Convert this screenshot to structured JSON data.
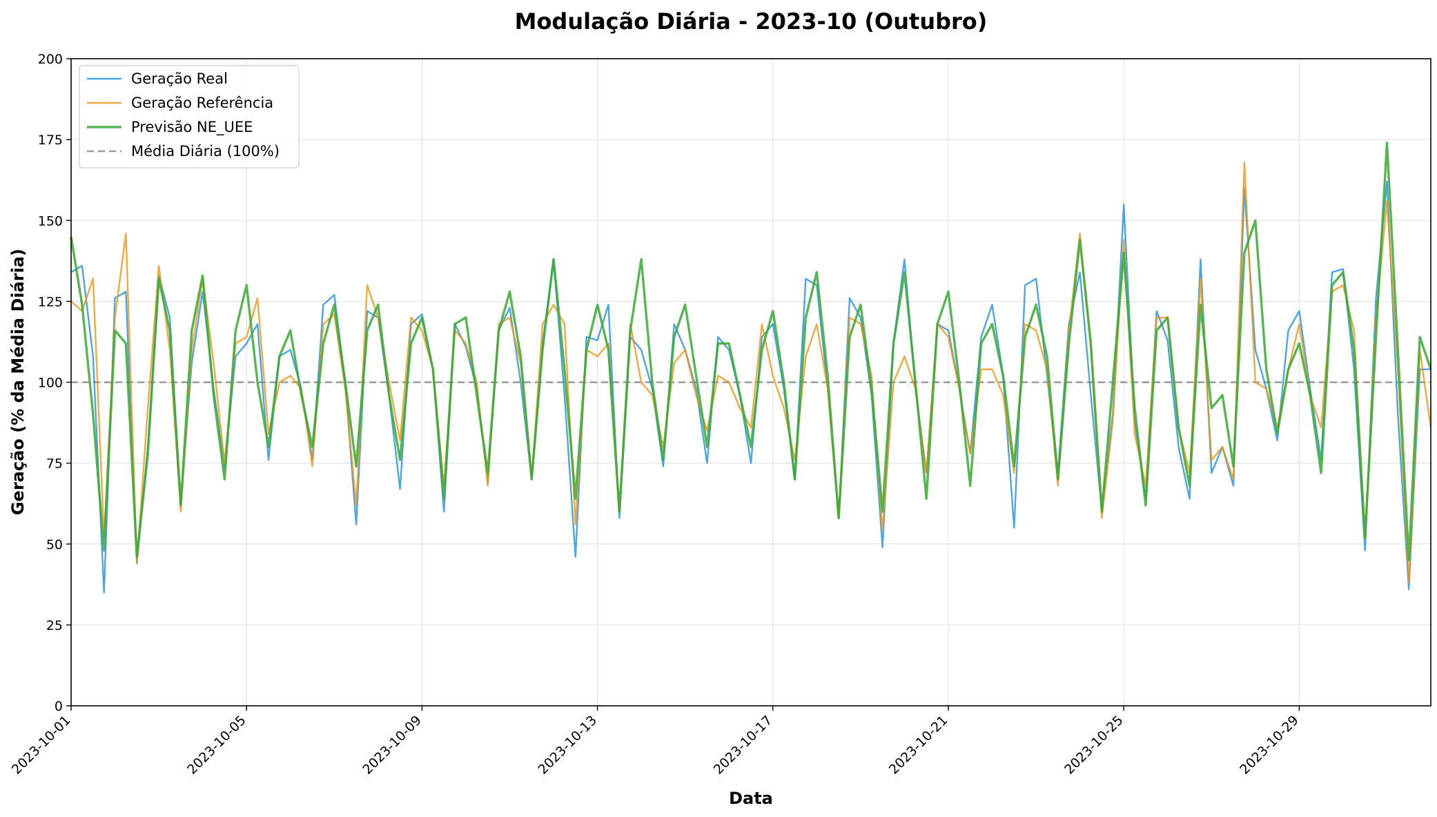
{
  "chart_data": {
    "type": "line",
    "title": "Modulação Diária - 2023-10 (Outubro)",
    "xlabel": "Data",
    "ylabel": "Geração (% da Média Diária)",
    "ylim": [
      0,
      200
    ],
    "yticks": [
      0,
      25,
      50,
      75,
      100,
      125,
      150,
      175,
      200
    ],
    "xlim": [
      "2023-10-01",
      "2023-11-01"
    ],
    "xticks": [
      "2023-10-01",
      "2023-10-05",
      "2023-10-09",
      "2023-10-13",
      "2023-10-17",
      "2023-10-21",
      "2023-10-25",
      "2023-10-29"
    ],
    "grid": true,
    "legend_position": "top-left",
    "reference_line": {
      "name": "Média Diária (100%)",
      "y": 100,
      "color": "#999999",
      "style": "dashed"
    },
    "x": [
      "2023-10-01 00:00",
      "2023-10-01 06:00",
      "2023-10-01 12:00",
      "2023-10-01 18:00",
      "2023-10-02 00:00",
      "2023-10-02 06:00",
      "2023-10-02 12:00",
      "2023-10-02 18:00",
      "2023-10-03 00:00",
      "2023-10-03 06:00",
      "2023-10-03 12:00",
      "2023-10-03 18:00",
      "2023-10-04 00:00",
      "2023-10-04 06:00",
      "2023-10-04 12:00",
      "2023-10-04 18:00",
      "2023-10-05 00:00",
      "2023-10-05 06:00",
      "2023-10-05 12:00",
      "2023-10-05 18:00",
      "2023-10-06 00:00",
      "2023-10-06 06:00",
      "2023-10-06 12:00",
      "2023-10-06 18:00",
      "2023-10-07 00:00",
      "2023-10-07 06:00",
      "2023-10-07 12:00",
      "2023-10-07 18:00",
      "2023-10-08 00:00",
      "2023-10-08 06:00",
      "2023-10-08 12:00",
      "2023-10-08 18:00",
      "2023-10-09 00:00",
      "2023-10-09 06:00",
      "2023-10-09 12:00",
      "2023-10-09 18:00",
      "2023-10-10 00:00",
      "2023-10-10 06:00",
      "2023-10-10 12:00",
      "2023-10-10 18:00",
      "2023-10-11 00:00",
      "2023-10-11 06:00",
      "2023-10-11 12:00",
      "2023-10-11 18:00",
      "2023-10-12 00:00",
      "2023-10-12 06:00",
      "2023-10-12 12:00",
      "2023-10-12 18:00",
      "2023-10-13 00:00",
      "2023-10-13 06:00",
      "2023-10-13 12:00",
      "2023-10-13 18:00",
      "2023-10-14 00:00",
      "2023-10-14 06:00",
      "2023-10-14 12:00",
      "2023-10-14 18:00",
      "2023-10-15 00:00",
      "2023-10-15 06:00",
      "2023-10-15 12:00",
      "2023-10-15 18:00",
      "2023-10-16 00:00",
      "2023-10-16 06:00",
      "2023-10-16 12:00",
      "2023-10-16 18:00",
      "2023-10-17 00:00",
      "2023-10-17 06:00",
      "2023-10-17 12:00",
      "2023-10-17 18:00",
      "2023-10-18 00:00",
      "2023-10-18 06:00",
      "2023-10-18 12:00",
      "2023-10-18 18:00",
      "2023-10-19 00:00",
      "2023-10-19 06:00",
      "2023-10-19 12:00",
      "2023-10-19 18:00",
      "2023-10-20 00:00",
      "2023-10-20 06:00",
      "2023-10-20 12:00",
      "2023-10-20 18:00",
      "2023-10-21 00:00",
      "2023-10-21 06:00",
      "2023-10-21 12:00",
      "2023-10-21 18:00",
      "2023-10-22 00:00",
      "2023-10-22 06:00",
      "2023-10-22 12:00",
      "2023-10-22 18:00",
      "2023-10-23 00:00",
      "2023-10-23 06:00",
      "2023-10-23 12:00",
      "2023-10-23 18:00",
      "2023-10-24 00:00",
      "2023-10-24 06:00",
      "2023-10-24 12:00",
      "2023-10-24 18:00",
      "2023-10-25 00:00",
      "2023-10-25 06:00",
      "2023-10-25 12:00",
      "2023-10-25 18:00",
      "2023-10-26 00:00",
      "2023-10-26 06:00",
      "2023-10-26 12:00",
      "2023-10-26 18:00",
      "2023-10-27 00:00",
      "2023-10-27 06:00",
      "2023-10-27 12:00",
      "2023-10-27 18:00",
      "2023-10-28 00:00",
      "2023-10-28 06:00",
      "2023-10-28 12:00",
      "2023-10-28 18:00",
      "2023-10-29 00:00",
      "2023-10-29 06:00",
      "2023-10-29 12:00",
      "2023-10-29 18:00",
      "2023-10-30 00:00",
      "2023-10-30 06:00",
      "2023-10-30 12:00",
      "2023-10-30 18:00",
      "2023-10-31 00:00",
      "2023-10-31 06:00",
      "2023-10-31 12:00",
      "2023-10-31 18:00",
      "2023-11-01 00:00"
    ],
    "series": [
      {
        "name": "Geração Real",
        "color": "#1f8fe0",
        "values": [
          134,
          136,
          108,
          35,
          126,
          128,
          44,
          80,
          133,
          120,
          62,
          106,
          128,
          98,
          74,
          108,
          112,
          118,
          76,
          108,
          110,
          98,
          76,
          124,
          127,
          100,
          56,
          122,
          120,
          96,
          67,
          118,
          121,
          104,
          60,
          118,
          111,
          98,
          69,
          116,
          123,
          100,
          70,
          112,
          138,
          96,
          46,
          114,
          113,
          124,
          58,
          114,
          110,
          98,
          74,
          118,
          110,
          98,
          75,
          114,
          110,
          96,
          75,
          114,
          118,
          98,
          70,
          132,
          130,
          98,
          58,
          126,
          120,
          96,
          49,
          112,
          138,
          98,
          72,
          118,
          116,
          98,
          78,
          114,
          124,
          102,
          55,
          130,
          132,
          102,
          72,
          118,
          134,
          96,
          60,
          90,
          155,
          88,
          64,
          122,
          113,
          80,
          64,
          138,
          72,
          80,
          68,
          160,
          110,
          98,
          82,
          116,
          122,
          98,
          76,
          134,
          135,
          104,
          48,
          126,
          162,
          90,
          36,
          104,
          104
        ],
        "opacity": 0.8
      },
      {
        "name": "Geração Referência",
        "color": "#f0930f",
        "values": [
          125,
          122,
          132,
          52,
          120,
          146,
          44,
          92,
          136,
          110,
          60,
          110,
          132,
          106,
          75,
          112,
          114,
          126,
          84,
          100,
          102,
          98,
          74,
          118,
          121,
          98,
          62,
          130,
          120,
          100,
          82,
          120,
          116,
          104,
          68,
          116,
          112,
          100,
          68,
          118,
          120,
          106,
          70,
          118,
          124,
          118,
          56,
          110,
          108,
          112,
          60,
          118,
          100,
          96,
          80,
          106,
          110,
          96,
          85,
          102,
          100,
          92,
          86,
          118,
          102,
          92,
          76,
          108,
          118,
          98,
          58,
          120,
          118,
          102,
          54,
          100,
          108,
          98,
          72,
          118,
          114,
          98,
          78,
          104,
          104,
          96,
          72,
          118,
          116,
          104,
          68,
          116,
          146,
          110,
          58,
          88,
          144,
          84,
          68,
          120,
          120,
          86,
          72,
          132,
          76,
          80,
          70,
          168,
          100,
          98,
          86,
          104,
          118,
          96,
          86,
          128,
          130,
          116,
          52,
          120,
          156,
          104,
          38,
          110,
          86
        ],
        "opacity": 0.8
      },
      {
        "name": "Previsão NE_UEE",
        "color": "#3aa935",
        "values": [
          145,
          124,
          90,
          48,
          116,
          112,
          46,
          78,
          132,
          116,
          62,
          116,
          133,
          96,
          70,
          116,
          130,
          100,
          80,
          108,
          116,
          96,
          80,
          112,
          124,
          100,
          74,
          116,
          124,
          96,
          76,
          112,
          120,
          104,
          64,
          118,
          120,
          96,
          72,
          116,
          128,
          108,
          70,
          110,
          138,
          104,
          64,
          110,
          124,
          110,
          60,
          116,
          138,
          100,
          76,
          114,
          124,
          102,
          80,
          112,
          112,
          96,
          80,
          110,
          122,
          100,
          70,
          120,
          134,
          102,
          58,
          114,
          124,
          98,
          60,
          112,
          134,
          100,
          64,
          118,
          128,
          100,
          68,
          112,
          118,
          102,
          74,
          114,
          124,
          108,
          70,
          112,
          144,
          112,
          60,
          100,
          140,
          92,
          62,
          116,
          120,
          86,
          68,
          124,
          92,
          96,
          74,
          140,
          150,
          104,
          84,
          104,
          112,
          96,
          72,
          130,
          134,
          110,
          52,
          114,
          174,
          110,
          45,
          114,
          104
        ],
        "opacity": 0.85
      }
    ]
  }
}
